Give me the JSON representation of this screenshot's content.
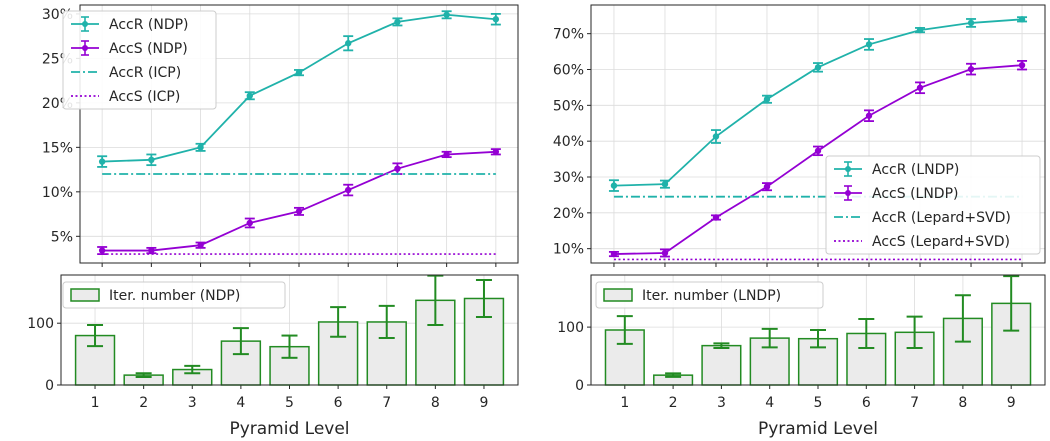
{
  "colors": {
    "accR": "#20b2aa",
    "accS": "#9400d3",
    "bars": "#228b22",
    "bar_fill": "#ebebeb",
    "grid": "#dcdcdc"
  },
  "chart_data": [
    {
      "id": "ndp-acc",
      "type": "line",
      "x": [
        1,
        2,
        3,
        4,
        5,
        6,
        7,
        8,
        9
      ],
      "y_tick_labels": [
        "5%",
        "10%",
        "15%",
        "20%",
        "25%",
        "30%"
      ],
      "ylim": [
        2.0,
        31.0
      ],
      "y_ticks": [
        5,
        10,
        15,
        20,
        25,
        30
      ],
      "series": [
        {
          "name": "AccR (NDP)",
          "values": [
            13.4,
            13.6,
            15.0,
            20.8,
            23.4,
            26.7,
            29.1,
            29.9,
            29.4
          ],
          "errors": [
            0.6,
            0.6,
            0.4,
            0.4,
            0.3,
            0.8,
            0.4,
            0.4,
            0.6
          ],
          "style": "errorbar",
          "color_key": "accR"
        },
        {
          "name": "AccS (NDP)",
          "values": [
            3.4,
            3.4,
            4.0,
            6.5,
            7.8,
            10.2,
            12.6,
            14.2,
            14.5
          ],
          "errors": [
            0.4,
            0.3,
            0.3,
            0.5,
            0.4,
            0.6,
            0.6,
            0.3,
            0.3
          ],
          "style": "errorbar",
          "color_key": "accS"
        },
        {
          "name": "AccR (ICP)",
          "values": [
            12.0,
            12.0,
            12.0,
            12.0,
            12.0,
            12.0,
            12.0,
            12.0,
            12.0
          ],
          "style": "dashdot",
          "color_key": "accR"
        },
        {
          "name": "AccS (ICP)",
          "values": [
            3.0,
            3.0,
            3.0,
            3.0,
            3.0,
            3.0,
            3.0,
            3.0,
            3.0
          ],
          "style": "dotted",
          "color_key": "accS"
        }
      ],
      "legend": "top-left",
      "grid": true
    },
    {
      "id": "lndp-acc",
      "type": "line",
      "x": [
        1,
        2,
        3,
        4,
        5,
        6,
        7,
        8,
        9
      ],
      "y_tick_labels": [
        "10%",
        "20%",
        "30%",
        "40%",
        "50%",
        "60%",
        "70%"
      ],
      "ylim": [
        6.0,
        78.0
      ],
      "y_ticks": [
        10,
        20,
        30,
        40,
        50,
        60,
        70
      ],
      "series": [
        {
          "name": "AccR (LNDP)",
          "values": [
            27.6,
            28.0,
            41.3,
            51.7,
            60.6,
            67.0,
            71.0,
            73.0,
            74.0
          ],
          "errors": [
            1.5,
            1.0,
            1.8,
            1.0,
            1.2,
            1.5,
            0.6,
            1.1,
            0.6
          ],
          "style": "errorbar",
          "color_key": "accR"
        },
        {
          "name": "AccS (LNDP)",
          "values": [
            8.5,
            8.8,
            18.7,
            27.3,
            37.3,
            47.1,
            54.9,
            60.1,
            61.2
          ],
          "errors": [
            0.6,
            1.0,
            0.6,
            1.0,
            1.2,
            1.5,
            1.5,
            1.5,
            1.2
          ],
          "style": "errorbar",
          "color_key": "accS"
        },
        {
          "name": "AccR (Lepard+SVD)",
          "values": [
            24.5,
            24.5,
            24.5,
            24.5,
            24.5,
            24.5,
            24.5,
            24.5,
            24.5
          ],
          "style": "dashdot",
          "color_key": "accR"
        },
        {
          "name": "AccS (Lepard+SVD)",
          "values": [
            7.0,
            7.0,
            7.0,
            7.0,
            7.0,
            7.0,
            7.0,
            7.0,
            7.0
          ],
          "style": "dotted",
          "color_key": "accS"
        }
      ],
      "legend": "lower-right",
      "grid": true
    },
    {
      "id": "ndp-iter",
      "type": "bar",
      "categories": [
        "1",
        "2",
        "3",
        "4",
        "5",
        "6",
        "7",
        "8",
        "9"
      ],
      "series": [
        {
          "name": "Iter. number (NDP)",
          "values": [
            80,
            16,
            25,
            71,
            62,
            102,
            102,
            137,
            140
          ],
          "errors": [
            17,
            3,
            6,
            21,
            18,
            24,
            26,
            40,
            30
          ]
        }
      ],
      "ylim": [
        0,
        178
      ],
      "y_ticks": [
        0,
        100
      ],
      "y_tick_labels": [
        "0",
        "100"
      ],
      "xlabel": "Pyramid Level",
      "legend": "top-left",
      "grid": true
    },
    {
      "id": "lndp-iter",
      "type": "bar",
      "categories": [
        "1",
        "2",
        "3",
        "4",
        "5",
        "6",
        "7",
        "8",
        "9"
      ],
      "series": [
        {
          "name": "Iter. number (LNDP)",
          "values": [
            95,
            17,
            68,
            81,
            80,
            89,
            91,
            115,
            141
          ],
          "errors": [
            24,
            3,
            4,
            16,
            15,
            25,
            27,
            40,
            47
          ]
        }
      ],
      "ylim": [
        0,
        190
      ],
      "y_ticks": [
        0,
        100
      ],
      "y_tick_labels": [
        "0",
        "100"
      ],
      "xlabel": "Pyramid Level",
      "legend": "top-left",
      "grid": true
    }
  ]
}
